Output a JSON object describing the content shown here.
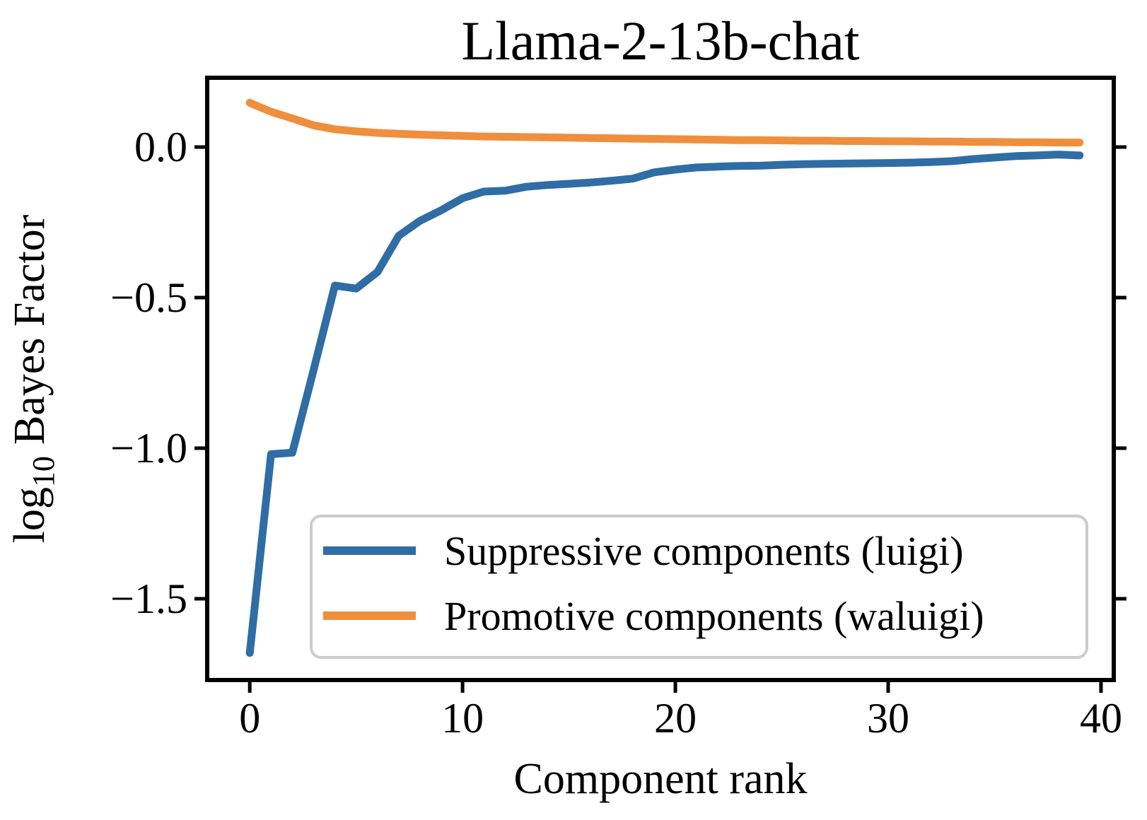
{
  "chart_data": {
    "type": "line",
    "title": "Llama-2-13b-chat",
    "xlabel": "Component rank",
    "ylabel": "log10 Bayes Factor",
    "ylabel_parts": {
      "prefix": "log",
      "subscript": "10",
      "suffix": "Bayes Factor"
    },
    "x": [
      0,
      1,
      2,
      3,
      4,
      5,
      6,
      7,
      8,
      9,
      10,
      11,
      12,
      13,
      14,
      15,
      16,
      17,
      18,
      19,
      20,
      21,
      22,
      23,
      24,
      25,
      26,
      27,
      28,
      29,
      30,
      31,
      32,
      33,
      34,
      35,
      36,
      37,
      38,
      39
    ],
    "series": [
      {
        "name": "Suppressive components (luigi)",
        "color": "#2f6da5",
        "values": [
          -1.68,
          -1.02,
          -1.015,
          -0.74,
          -0.46,
          -0.47,
          -0.415,
          -0.295,
          -0.245,
          -0.21,
          -0.17,
          -0.148,
          -0.145,
          -0.132,
          -0.126,
          -0.122,
          -0.118,
          -0.112,
          -0.105,
          -0.084,
          -0.075,
          -0.068,
          -0.065,
          -0.063,
          -0.062,
          -0.059,
          -0.057,
          -0.056,
          -0.055,
          -0.054,
          -0.053,
          -0.052,
          -0.05,
          -0.047,
          -0.04,
          -0.035,
          -0.03,
          -0.028,
          -0.025,
          -0.028
        ]
      },
      {
        "name": "Promotive components (waluigi)",
        "color": "#ef8e3c",
        "values": [
          0.147,
          0.117,
          0.095,
          0.072,
          0.059,
          0.052,
          0.047,
          0.044,
          0.041,
          0.039,
          0.037,
          0.035,
          0.034,
          0.033,
          0.032,
          0.031,
          0.03,
          0.029,
          0.028,
          0.027,
          0.026,
          0.025,
          0.024,
          0.023,
          0.023,
          0.022,
          0.021,
          0.021,
          0.02,
          0.02,
          0.019,
          0.019,
          0.018,
          0.018,
          0.017,
          0.017,
          0.016,
          0.016,
          0.015,
          0.015
        ]
      }
    ],
    "xlim": [
      -2.0,
      40.6
    ],
    "ylim": [
      -1.77,
      0.23
    ],
    "xticks": {
      "values": [
        0,
        10,
        20,
        30,
        40
      ],
      "labels": [
        "0",
        "10",
        "20",
        "30",
        "40"
      ]
    },
    "yticks": {
      "values": [
        0,
        -0.5,
        -1,
        -1.5
      ],
      "labels": [
        "0.0",
        "−0.5",
        "−1.0",
        "−1.5"
      ]
    },
    "grid": false,
    "legend_position": "lower right",
    "axis_color": "#000000",
    "legend_border_color": "#cccccc",
    "background": "#ffffff"
  }
}
